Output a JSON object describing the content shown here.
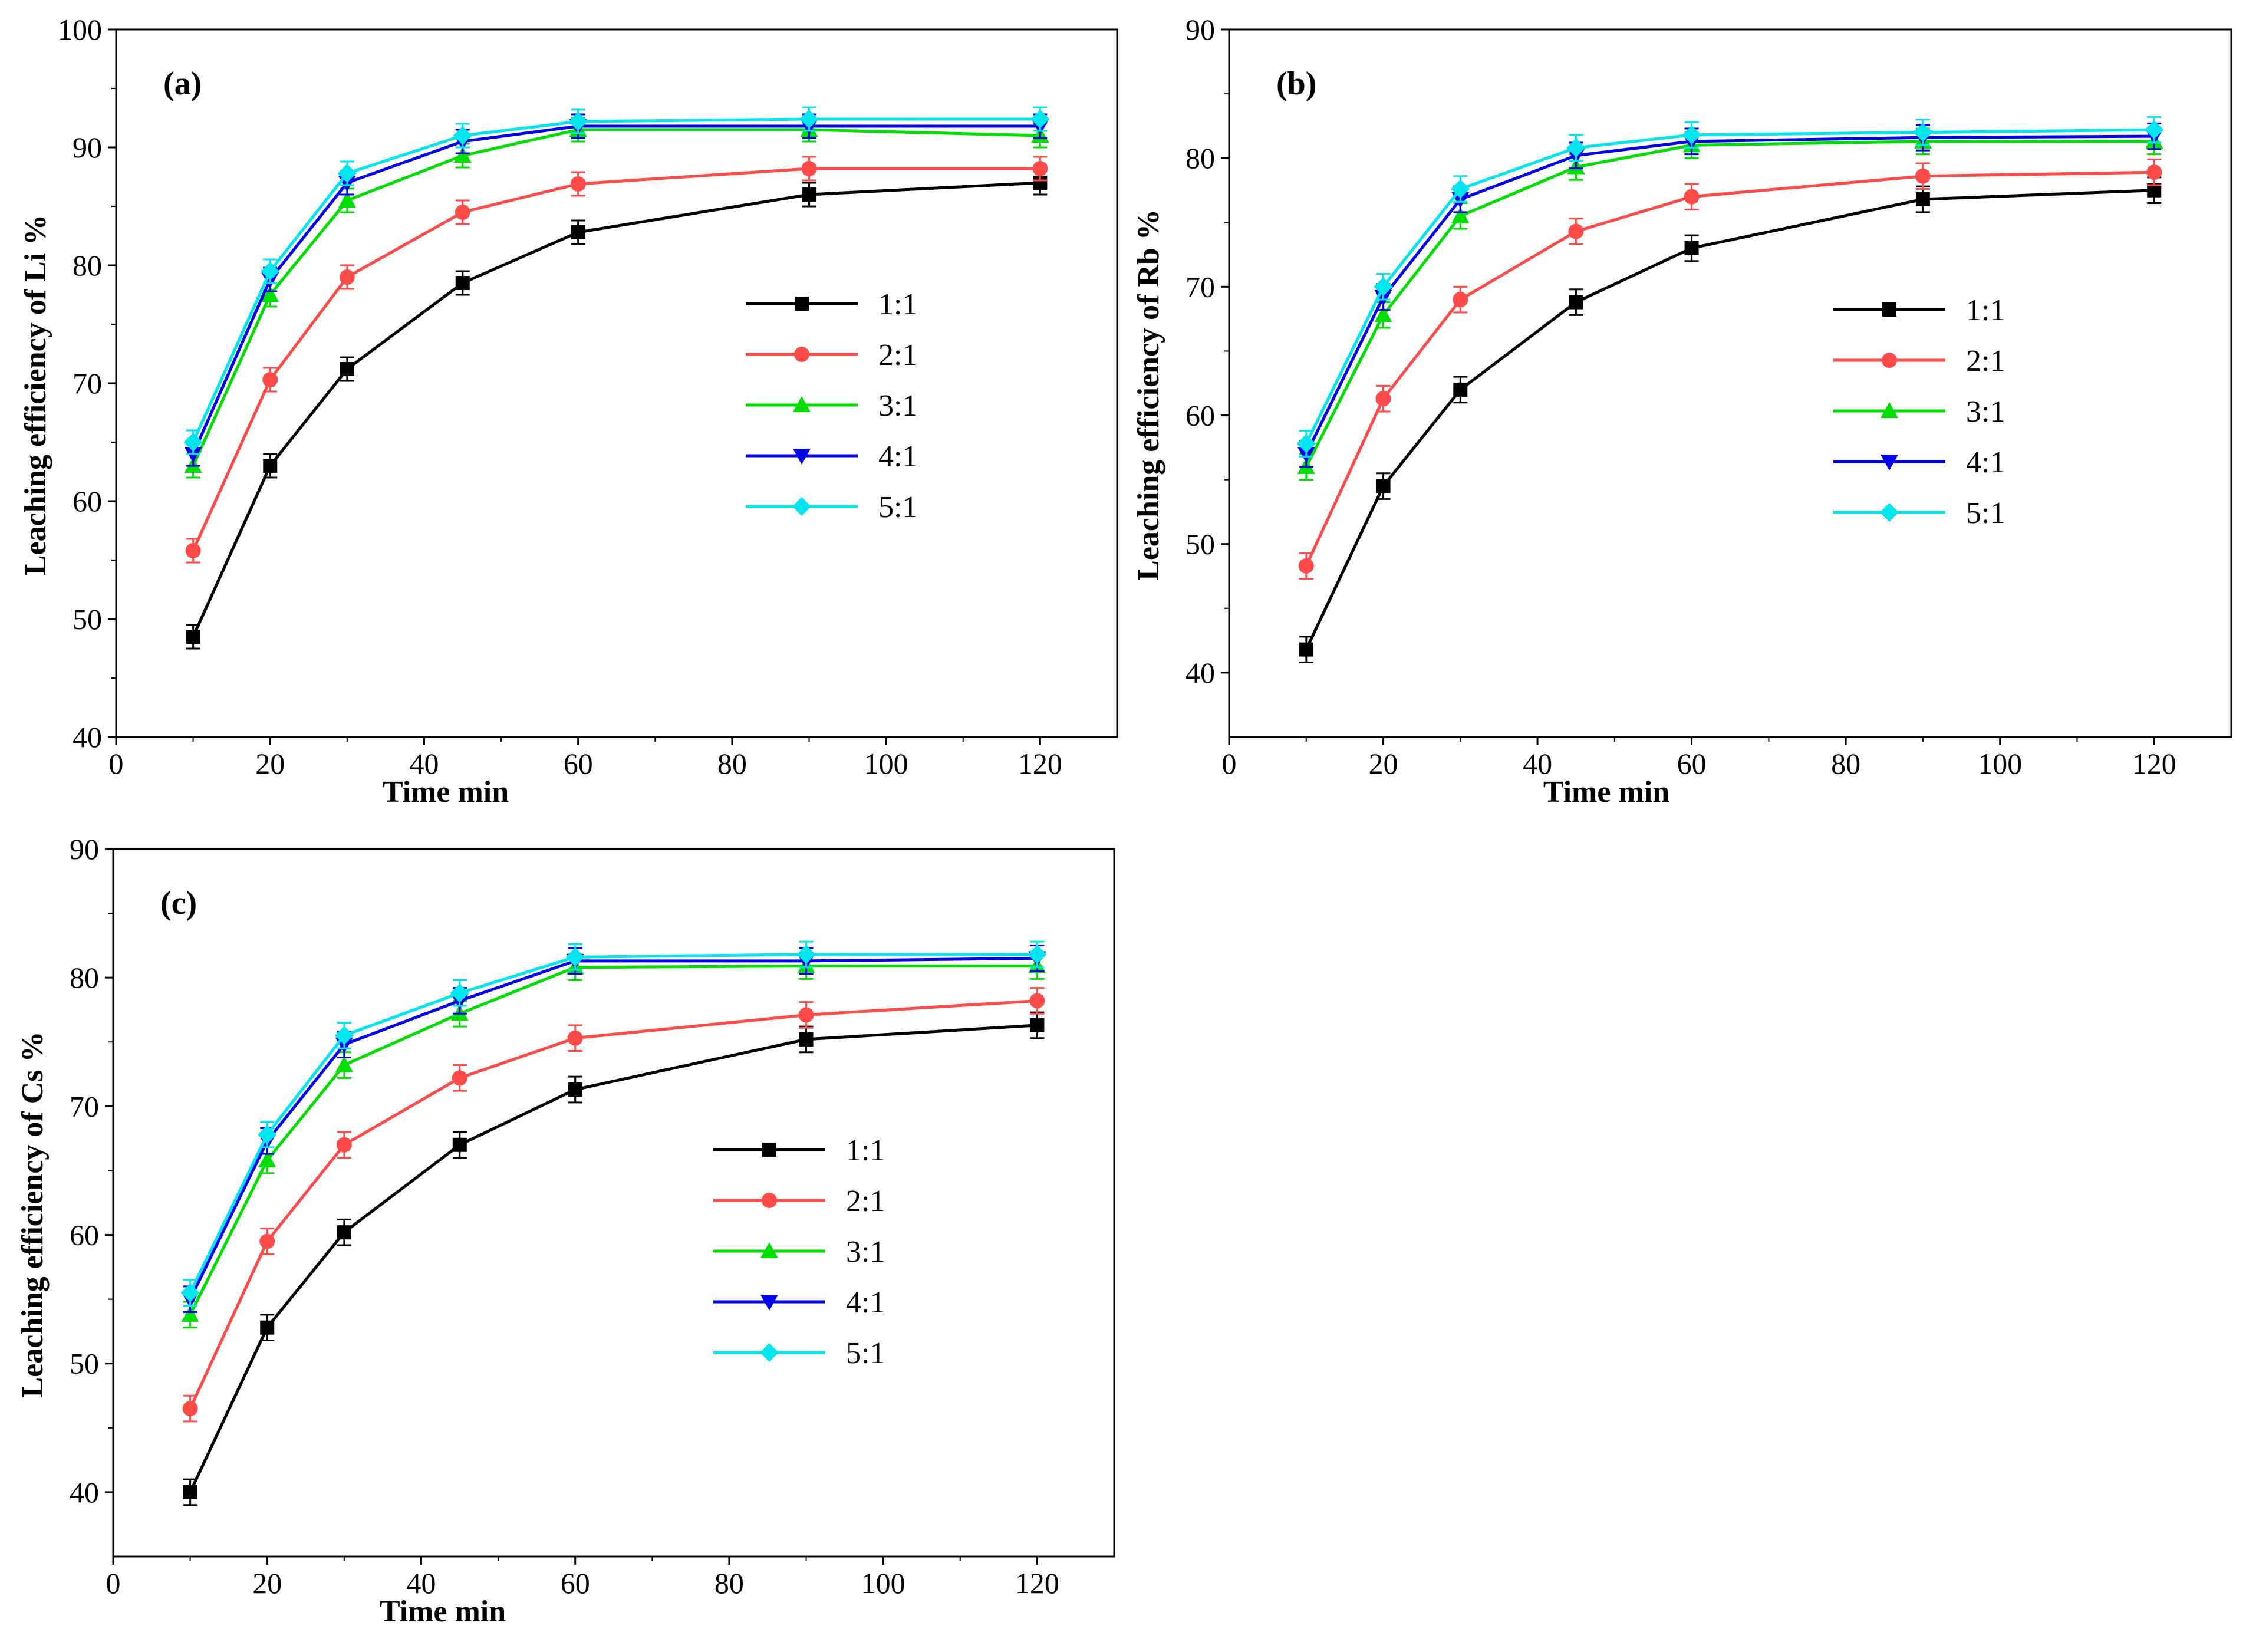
{
  "chart_data": [
    {
      "type": "line",
      "panel_label": "(a)",
      "xlabel": "Time min",
      "ylabel": "Leaching efficiency of Li %",
      "xlim": [
        0,
        130
      ],
      "ylim": [
        40,
        100
      ],
      "xticks": [
        0,
        20,
        40,
        60,
        80,
        100,
        120
      ],
      "yticks": [
        40,
        50,
        60,
        70,
        80,
        90,
        100
      ],
      "legend_position": "right-middle",
      "x": [
        10,
        20,
        30,
        45,
        60,
        90,
        120
      ],
      "series": [
        {
          "name": "1:1",
          "color": "#000000",
          "marker": "square",
          "values": [
            48.5,
            63.0,
            71.2,
            78.5,
            82.8,
            86.0,
            87.0
          ]
        },
        {
          "name": "2:1",
          "color": "#ff4a4a",
          "marker": "circle",
          "values": [
            55.8,
            70.3,
            79.0,
            84.5,
            86.9,
            88.2,
            88.2
          ]
        },
        {
          "name": "3:1",
          "color": "#00dd00",
          "marker": "triangle-up",
          "values": [
            63.0,
            77.5,
            85.5,
            89.3,
            91.5,
            91.5,
            91.0
          ]
        },
        {
          "name": "4:1",
          "color": "#0000ee",
          "marker": "triangle-down",
          "values": [
            64.0,
            78.8,
            87.0,
            90.5,
            91.8,
            91.8,
            91.8
          ]
        },
        {
          "name": "5:1",
          "color": "#00e5ee",
          "marker": "diamond",
          "values": [
            65.0,
            79.5,
            87.8,
            91.0,
            92.2,
            92.4,
            92.4
          ]
        }
      ]
    },
    {
      "type": "line",
      "panel_label": "(b)",
      "xlabel": "Time min",
      "ylabel": "Leaching efficiency of Rb %",
      "xlim": [
        0,
        130
      ],
      "ylim": [
        35,
        90
      ],
      "xticks": [
        0,
        20,
        40,
        60,
        80,
        100,
        120
      ],
      "yticks": [
        40,
        50,
        60,
        70,
        80,
        90
      ],
      "legend_position": "right-middle",
      "x": [
        10,
        20,
        30,
        45,
        60,
        90,
        120
      ],
      "series": [
        {
          "name": "1:1",
          "color": "#000000",
          "marker": "square",
          "values": [
            41.8,
            54.5,
            62.0,
            68.8,
            73.0,
            76.8,
            77.5
          ]
        },
        {
          "name": "2:1",
          "color": "#ff4a4a",
          "marker": "circle",
          "values": [
            48.3,
            61.3,
            69.0,
            74.3,
            77.0,
            78.6,
            78.9
          ]
        },
        {
          "name": "3:1",
          "color": "#00dd00",
          "marker": "triangle-up",
          "values": [
            56.0,
            67.8,
            75.5,
            79.3,
            81.0,
            81.3,
            81.3
          ]
        },
        {
          "name": "4:1",
          "color": "#0000ee",
          "marker": "triangle-down",
          "values": [
            57.0,
            69.2,
            76.8,
            80.2,
            81.3,
            81.6,
            81.7
          ]
        },
        {
          "name": "5:1",
          "color": "#00e5ee",
          "marker": "diamond",
          "values": [
            57.8,
            70.0,
            77.6,
            80.8,
            81.8,
            82.0,
            82.2
          ]
        }
      ]
    },
    {
      "type": "line",
      "panel_label": "(c)",
      "xlabel": "Time min",
      "ylabel": "Leaching efficiency of Cs %",
      "xlim": [
        0,
        130
      ],
      "ylim": [
        35,
        90
      ],
      "xticks": [
        0,
        20,
        40,
        60,
        80,
        100,
        120
      ],
      "yticks": [
        40,
        50,
        60,
        70,
        80,
        90
      ],
      "legend_position": "right-middle",
      "x": [
        10,
        20,
        30,
        45,
        60,
        90,
        120
      ],
      "series": [
        {
          "name": "1:1",
          "color": "#000000",
          "marker": "square",
          "values": [
            40.0,
            52.8,
            60.2,
            67.0,
            71.3,
            75.2,
            76.3
          ]
        },
        {
          "name": "2:1",
          "color": "#ff4a4a",
          "marker": "circle",
          "values": [
            46.5,
            59.5,
            67.0,
            72.2,
            75.3,
            77.1,
            78.2
          ]
        },
        {
          "name": "3:1",
          "color": "#00dd00",
          "marker": "triangle-up",
          "values": [
            53.8,
            65.8,
            73.2,
            77.2,
            80.8,
            80.9,
            80.9
          ]
        },
        {
          "name": "4:1",
          "color": "#0000ee",
          "marker": "triangle-down",
          "values": [
            55.0,
            67.3,
            74.8,
            78.2,
            81.3,
            81.3,
            81.5
          ]
        },
        {
          "name": "5:1",
          "color": "#00e5ee",
          "marker": "diamond",
          "values": [
            55.5,
            67.8,
            75.5,
            78.8,
            81.6,
            81.8,
            81.8
          ]
        }
      ]
    }
  ]
}
